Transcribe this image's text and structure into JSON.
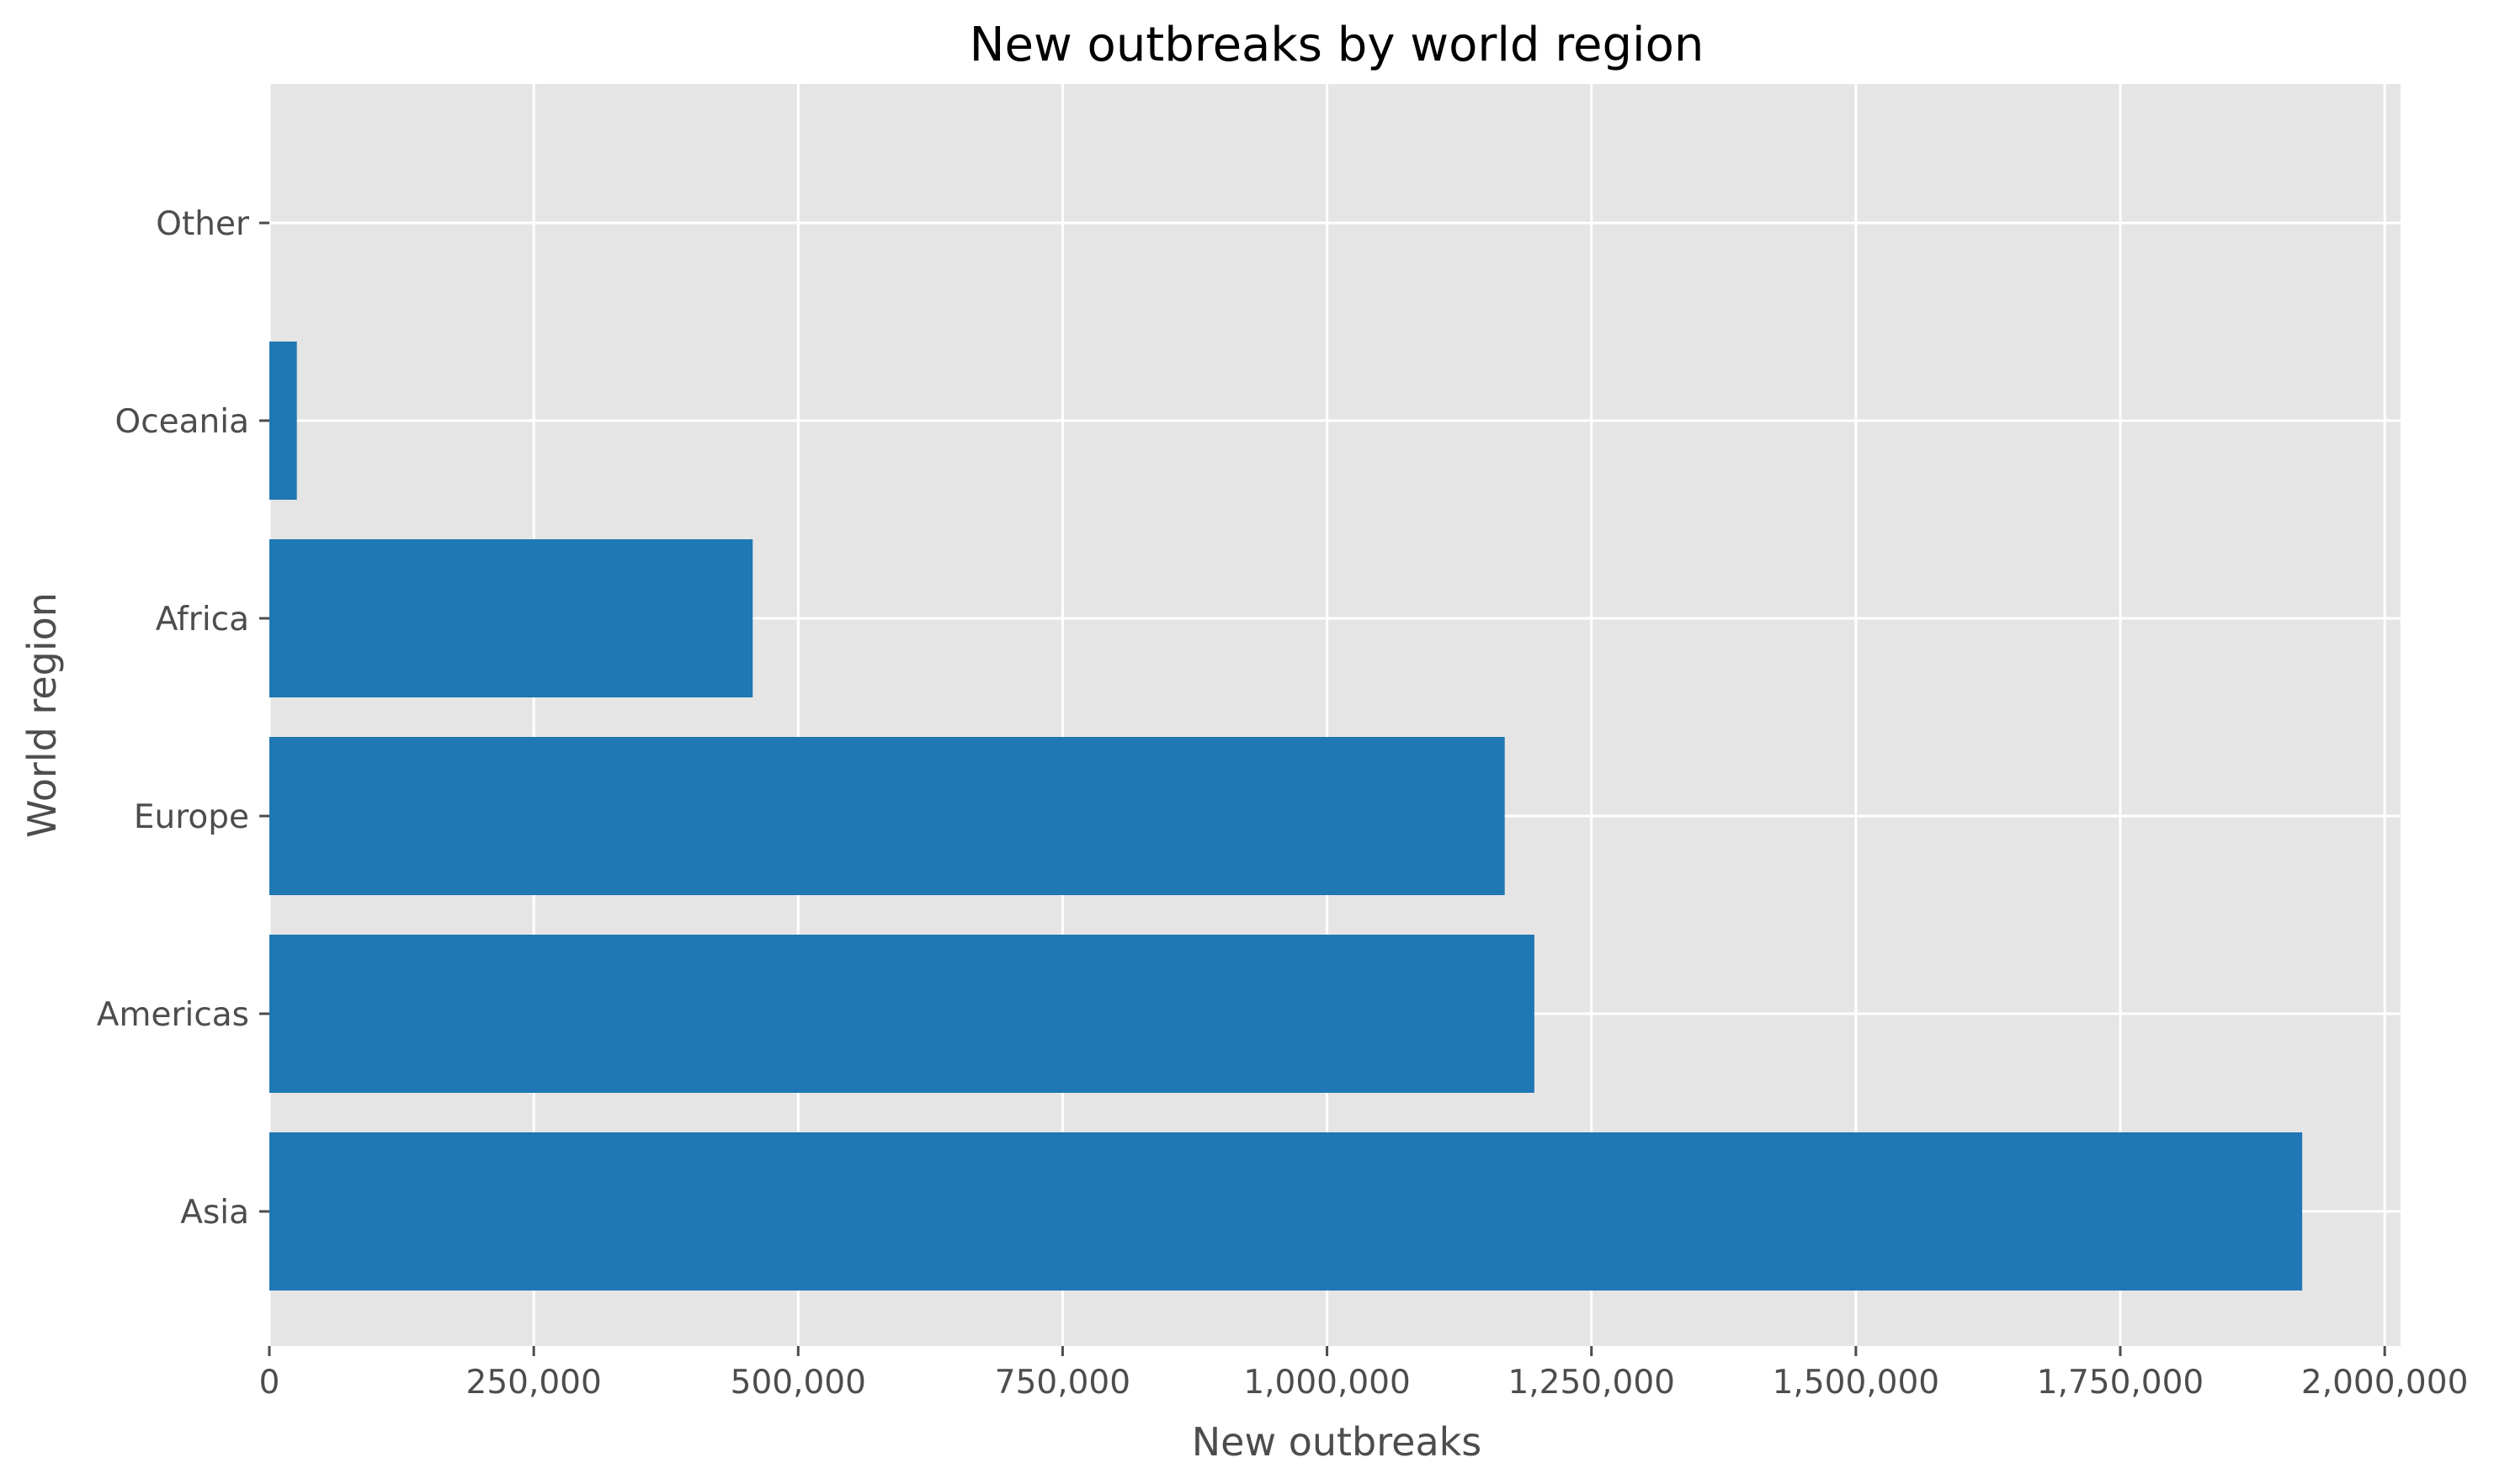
{
  "chart_data": {
    "type": "bar",
    "orientation": "horizontal",
    "title": "New outbreaks by world region",
    "xlabel": "New outbreaks",
    "ylabel": "World region",
    "categories": [
      "Asia",
      "Americas",
      "Europe",
      "Africa",
      "Oceania",
      "Other"
    ],
    "values": [
      1922000,
      1196000,
      1168000,
      457000,
      26000,
      0
    ],
    "xlim": [
      0,
      2015000
    ],
    "xticks": [
      0,
      250000,
      500000,
      750000,
      1000000,
      1250000,
      1500000,
      1750000,
      2000000
    ],
    "xtick_labels": [
      "0",
      "250,000",
      "500,000",
      "750,000",
      "1,000,000",
      "1,250,000",
      "1,500,000",
      "1,750,000",
      "2,000,000"
    ],
    "grid": true,
    "colors": {
      "bar": "#1f77b4",
      "background": "#e5e5e5",
      "grid": "#ffffff"
    }
  }
}
